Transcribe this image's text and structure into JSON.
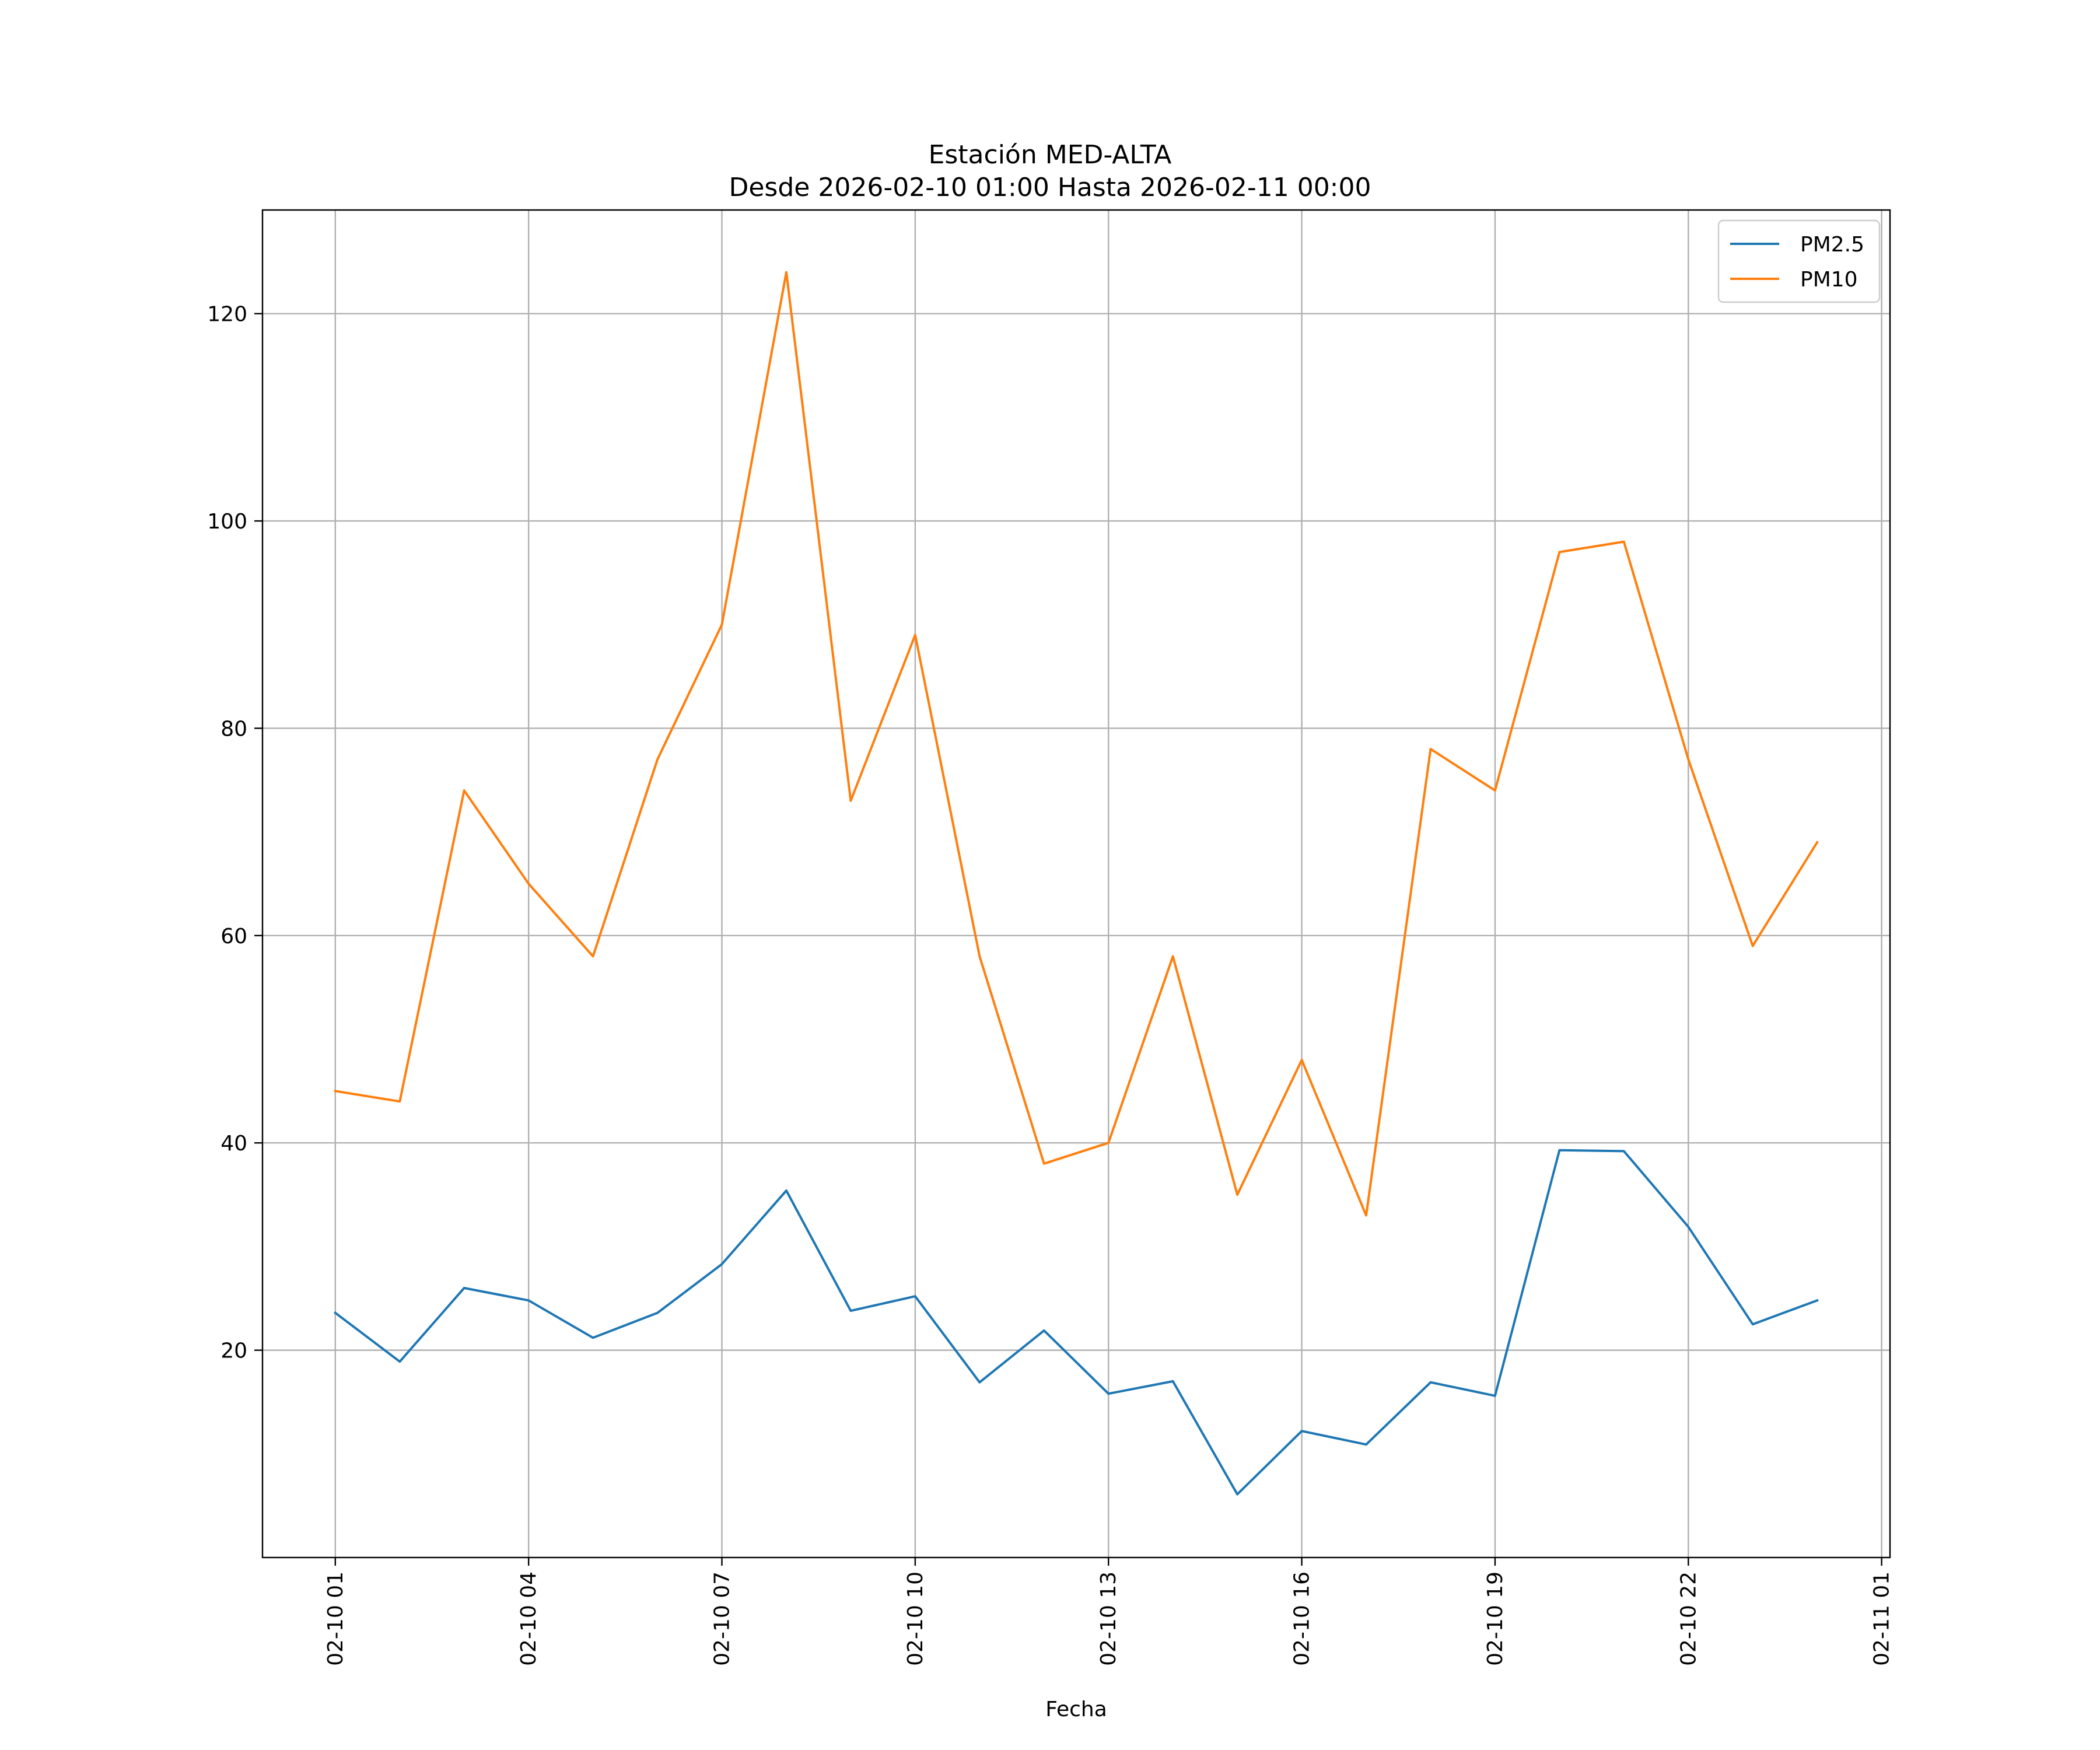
{
  "chart_data": {
    "type": "line",
    "title": "Estación MED-ALTA",
    "subtitle": "Desde 2026-02-10 01:00 Hasta 2026-02-11 00:00",
    "xlabel": "Fecha",
    "ylabel": "",
    "x_hours": [
      1,
      2,
      3,
      4,
      5,
      6,
      7,
      8,
      9,
      10,
      11,
      12,
      13,
      14,
      15,
      16,
      17,
      18,
      19,
      20,
      21,
      22,
      23,
      24
    ],
    "xlim_hours": [
      -0.13,
      25.13
    ],
    "ylim": [
      0,
      130
    ],
    "grid": true,
    "legend_position": "upper-right",
    "x_ticks": [
      {
        "hour": 1,
        "label": "02-10 01"
      },
      {
        "hour": 4,
        "label": "02-10 04"
      },
      {
        "hour": 7,
        "label": "02-10 07"
      },
      {
        "hour": 10,
        "label": "02-10 10"
      },
      {
        "hour": 13,
        "label": "02-10 13"
      },
      {
        "hour": 16,
        "label": "02-10 16"
      },
      {
        "hour": 19,
        "label": "02-10 19"
      },
      {
        "hour": 22,
        "label": "02-10 22"
      },
      {
        "hour": 25,
        "label": "02-11 01"
      }
    ],
    "y_ticks": [
      20,
      40,
      60,
      80,
      100,
      120
    ],
    "series": [
      {
        "name": "PM2.5",
        "color": "#1f77b4",
        "values": [
          23.6,
          18.9,
          26.0,
          24.8,
          21.2,
          23.6,
          28.3,
          35.4,
          23.8,
          25.2,
          16.9,
          21.9,
          15.8,
          17.0,
          6.1,
          12.2,
          10.9,
          16.9,
          15.6,
          39.3,
          39.2,
          31.9,
          22.5,
          24.8
        ]
      },
      {
        "name": "PM10",
        "color": "#ff7f0e",
        "values": [
          45,
          44,
          74,
          65,
          58,
          77,
          90,
          124,
          73,
          89,
          58,
          38,
          40,
          58,
          35,
          48,
          33,
          78,
          74,
          97,
          98,
          77,
          59,
          69
        ]
      }
    ]
  }
}
